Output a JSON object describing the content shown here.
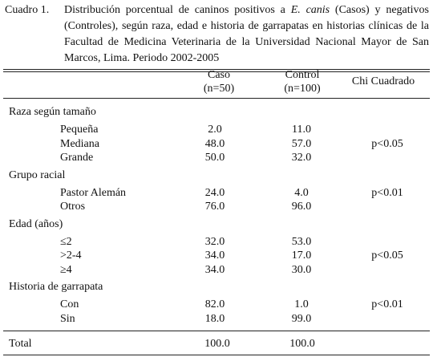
{
  "caption": {
    "label": "Cuadro 1.",
    "text_before": "Distribución porcentual de caninos positivos a ",
    "emphasis": "E. canis",
    "text_after": " (Casos) y negativos (Controles), según raza, edad e historia de garrapatas en historias clínicas de la Facultad de Medicina Veterinaria de la Universidad Nacional Mayor de San Marcos, Lima. Periodo 2002-2005"
  },
  "table": {
    "header": {
      "caso": "Caso",
      "caso_n": "(n=50)",
      "control": "Control",
      "control_n": "(n=100)",
      "chi": "Chi Cuadrado"
    },
    "groups": [
      {
        "label": "Raza según tamaño",
        "rows": [
          {
            "label": "Pequeña",
            "caso": "2.0",
            "control": "11.0"
          },
          {
            "label": "Mediana",
            "caso": "48.0",
            "control": "57.0",
            "chi": "p<0.05"
          },
          {
            "label": "Grande",
            "caso": "50.0",
            "control": "32.0"
          }
        ]
      },
      {
        "label": "Grupo racial",
        "rows": [
          {
            "label": "Pastor Alemán",
            "caso": "24.0",
            "control": "4.0",
            "chi": "p<0.01"
          },
          {
            "label": "Otros",
            "caso": "76.0",
            "control": "96.0"
          }
        ]
      },
      {
        "label": "Edad (años)",
        "rows": [
          {
            "label": "≤2",
            "caso": "32.0",
            "control": "53.0"
          },
          {
            "label": ">2-4",
            "caso": "34.0",
            "control": "17.0",
            "chi": "p<0.05"
          },
          {
            "label": "≥4",
            "caso": "34.0",
            "control": "30.0"
          }
        ]
      },
      {
        "label": "Historia de garrapata",
        "rows": [
          {
            "label": "Con",
            "caso": "82.0",
            "control": "1.0",
            "chi": "p<0.01"
          },
          {
            "label": "Sin",
            "caso": "18.0",
            "control": "99.0"
          }
        ]
      }
    ],
    "total": {
      "label": "Total",
      "caso": "100.0",
      "control": "100.0"
    }
  }
}
